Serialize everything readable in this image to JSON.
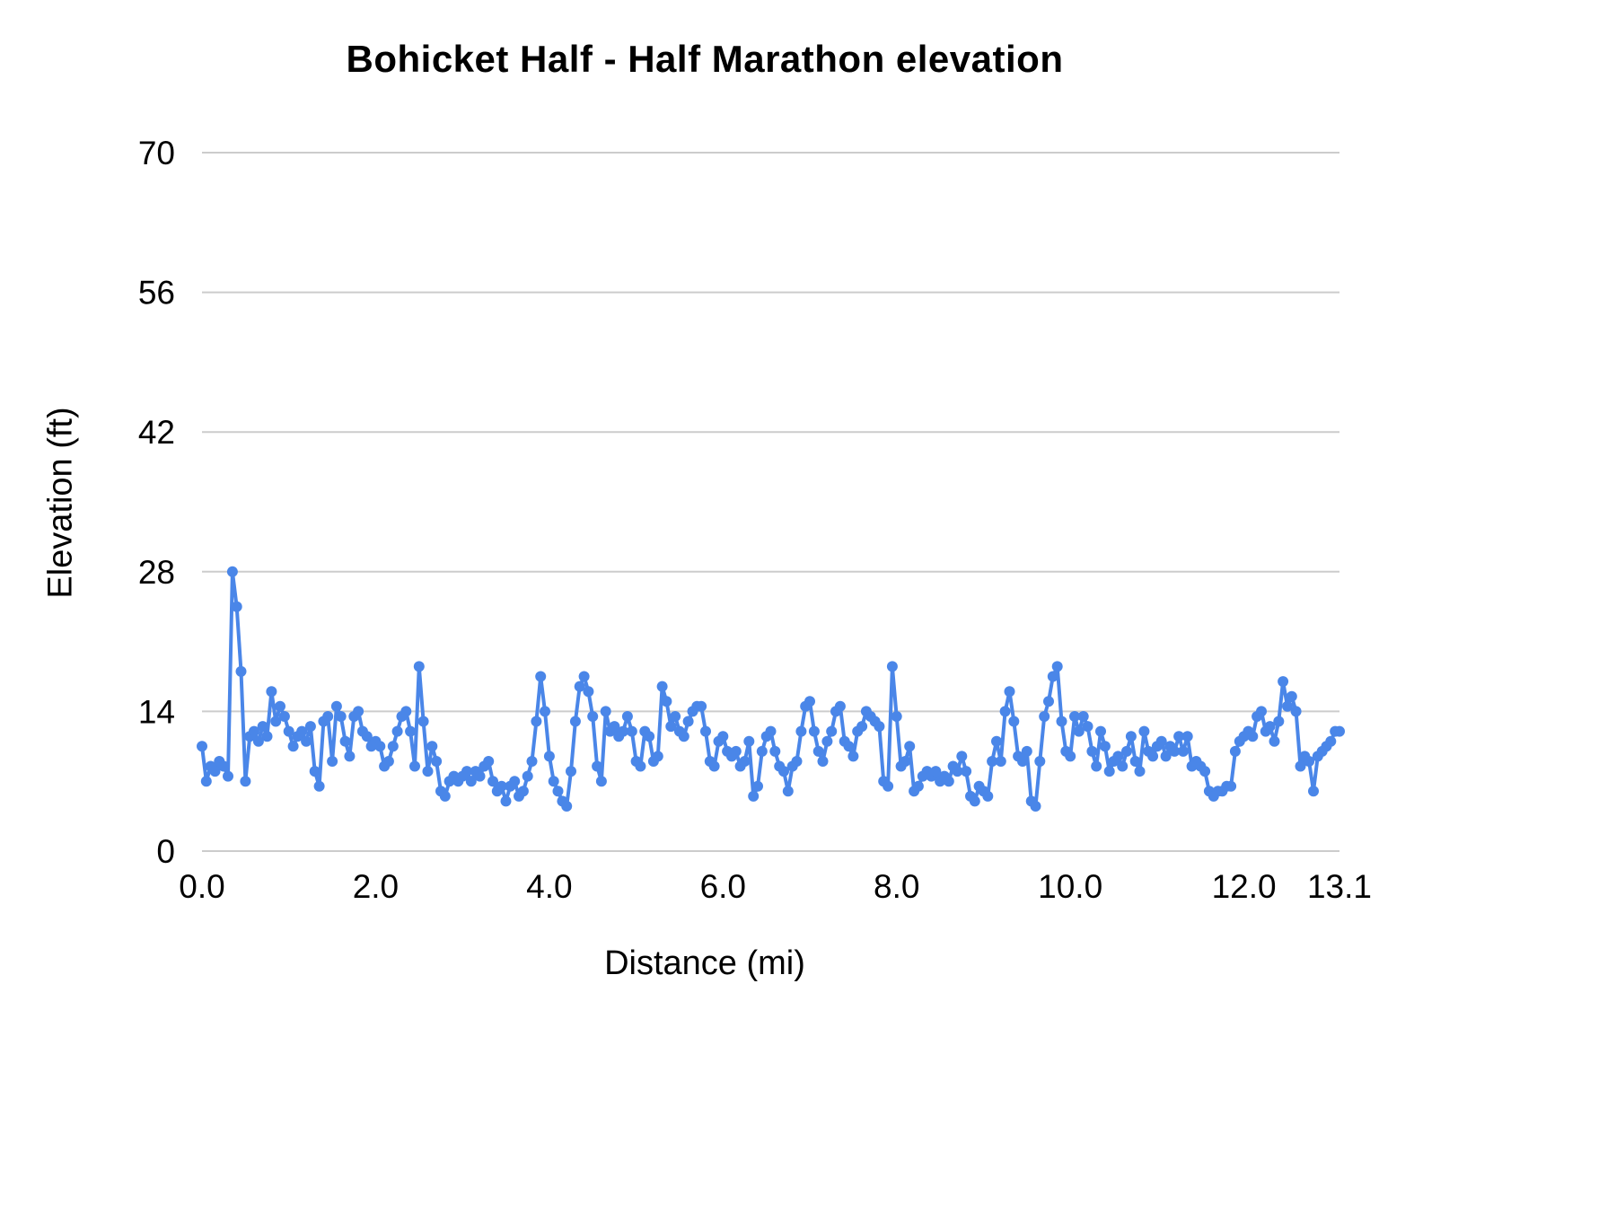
{
  "page": {
    "background": "#ffffff"
  },
  "chart_data": {
    "type": "line",
    "title": "Bohicket Half - Half Marathon elevation",
    "xlabel": "Distance (mi)",
    "ylabel": "Elevation (ft)",
    "legend": "none",
    "grid": "horizontal",
    "grid_color": "#cccccc",
    "line_color": "#4a86e8",
    "marker": "circle",
    "xlim": [
      0,
      13.1
    ],
    "ylim": [
      0,
      70
    ],
    "y_ticks": [
      0,
      14,
      28,
      42,
      56,
      70
    ],
    "y_tick_labels": [
      "0",
      "14",
      "28",
      "42",
      "56",
      "70"
    ],
    "x_tick_values": [
      0,
      2,
      4,
      6,
      8,
      10,
      12,
      13.1
    ],
    "x_tick_labels": [
      "0.0",
      "2.0",
      "4.0",
      "6.0",
      "8.0",
      "10.0",
      "12.0",
      "13.1"
    ],
    "x_start": 0,
    "x_step": 0.05,
    "values": [
      10.5,
      7,
      8.5,
      8,
      9,
      8.5,
      7.5,
      28,
      24.5,
      18,
      7,
      11.5,
      12,
      11,
      12.5,
      11.5,
      16,
      13,
      14.5,
      13.5,
      12,
      10.5,
      11.5,
      12,
      11,
      12.5,
      8,
      6.5,
      13,
      13.5,
      9,
      14.5,
      13.5,
      11,
      9.5,
      13.5,
      14,
      12,
      11.5,
      10.5,
      11,
      10.5,
      8.5,
      9,
      10.5,
      12,
      13.5,
      14,
      12,
      8.5,
      18.5,
      13,
      8,
      10.5,
      9,
      6,
      5.5,
      7,
      7.5,
      7,
      7.5,
      8,
      7,
      8,
      7.5,
      8.5,
      9,
      7,
      6,
      6.5,
      5,
      6.5,
      7,
      5.5,
      6,
      7.5,
      9,
      13,
      17.5,
      14,
      9.5,
      7,
      6,
      5,
      4.5,
      8,
      13,
      16.5,
      17.5,
      16,
      13.5,
      8.5,
      7,
      14,
      12,
      12.5,
      11.5,
      12,
      13.5,
      12,
      9,
      8.5,
      12,
      11.5,
      9,
      9.5,
      16.5,
      15,
      12.5,
      13.5,
      12,
      11.5,
      13,
      14,
      14.5,
      14.5,
      12,
      9,
      8.5,
      11,
      11.5,
      10,
      9.5,
      10,
      8.5,
      9,
      11,
      5.5,
      6.5,
      10,
      11.5,
      12,
      10,
      8.5,
      8,
      6,
      8.5,
      9,
      12,
      14.5,
      15,
      12,
      10,
      9,
      11,
      12,
      14,
      14.5,
      11,
      10.5,
      9.5,
      12,
      12.5,
      14,
      13.5,
      13,
      12.5,
      7,
      6.5,
      18.5,
      13.5,
      8.5,
      9,
      10.5,
      6,
      6.5,
      7.5,
      8,
      7.5,
      8,
      7,
      7.5,
      7,
      8.5,
      8,
      9.5,
      8,
      5.5,
      5,
      6.5,
      6,
      5.5,
      9,
      11,
      9,
      14,
      16,
      13,
      9.5,
      9,
      10,
      5,
      4.5,
      9,
      13.5,
      15,
      17.5,
      18.5,
      13,
      10,
      9.5,
      13.5,
      12,
      13.5,
      12.5,
      10,
      8.5,
      12,
      10.5,
      8,
      9,
      9.5,
      8.5,
      10,
      11.5,
      9,
      8,
      12,
      10,
      9.5,
      10.5,
      11,
      9.5,
      10.5,
      10,
      11.5,
      10,
      11.5,
      8.5,
      9,
      8.5,
      8,
      6,
      5.5,
      6,
      6,
      6.5,
      6.5,
      10,
      11,
      11.5,
      12,
      11.5,
      13.5,
      14,
      12,
      12.5,
      11,
      13,
      17,
      14.5,
      15.5,
      14,
      8.5,
      9.5,
      9,
      6,
      9.5,
      10,
      10.5,
      11,
      12,
      12
    ]
  }
}
